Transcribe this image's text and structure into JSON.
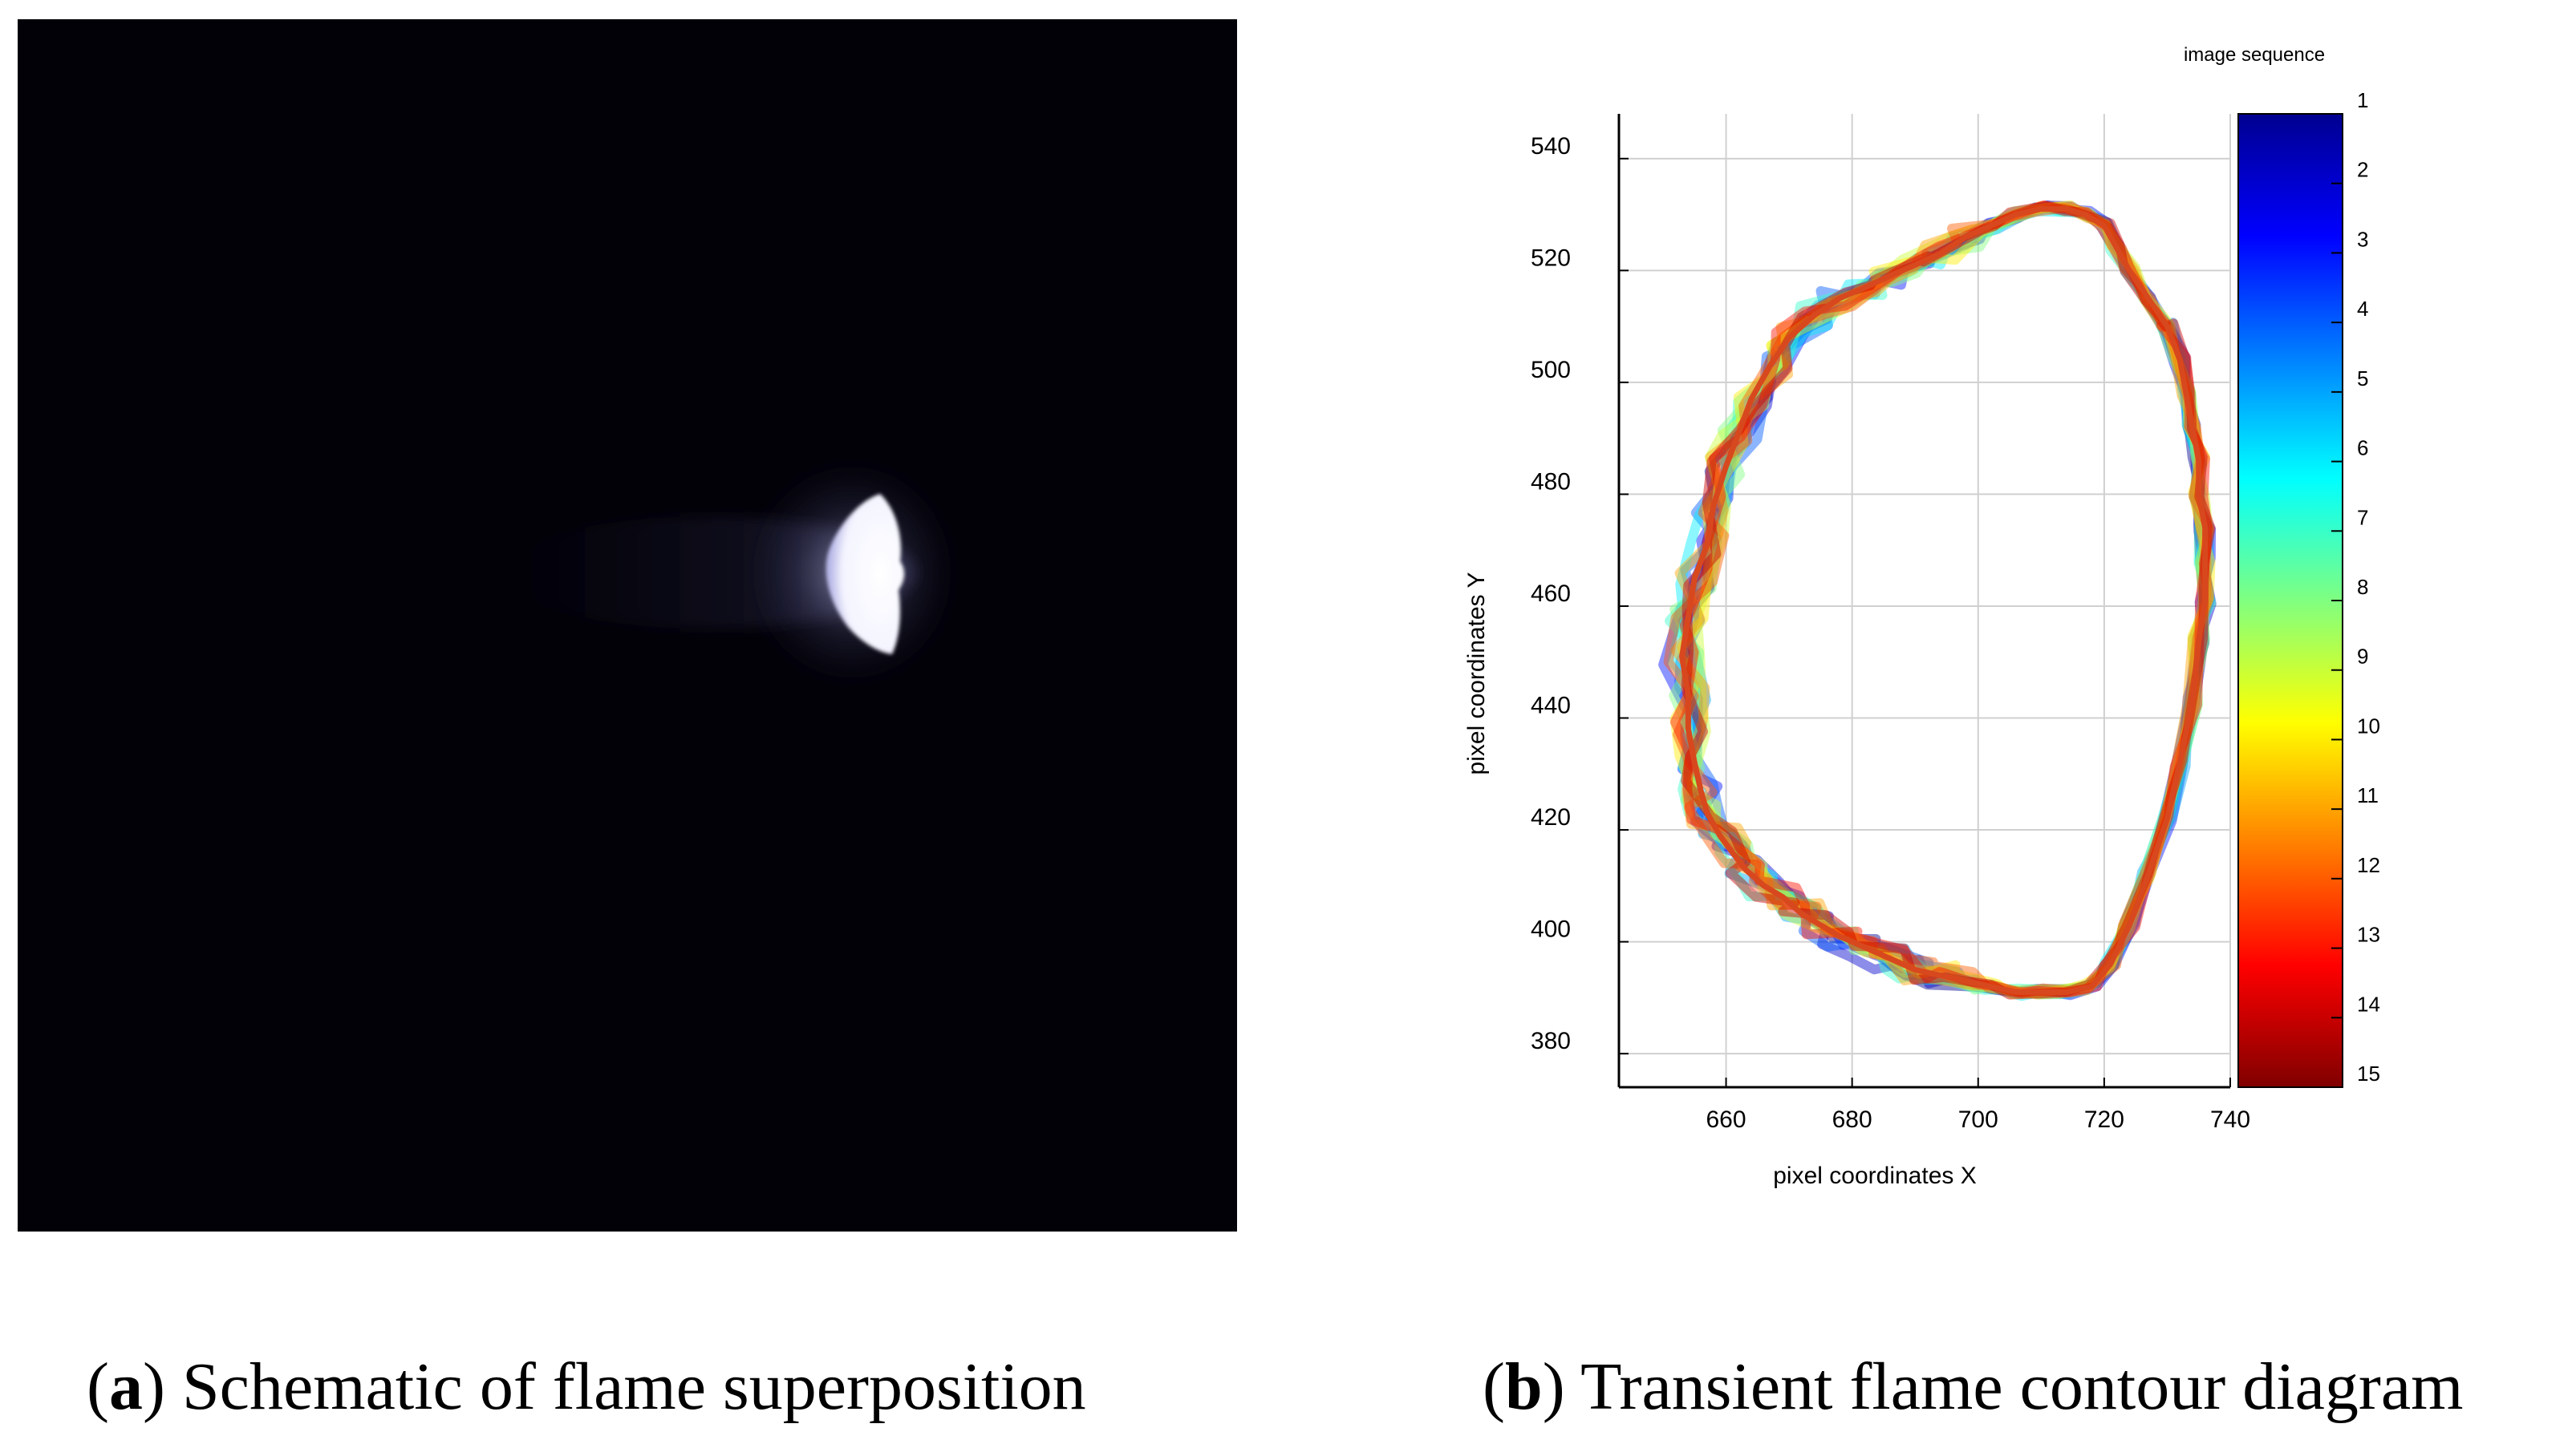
{
  "panel_a": {
    "colors": {
      "background": "#020108",
      "flame": "#f4f4ff"
    }
  },
  "captions": {
    "a_letter": "a",
    "a_text": "Schematic of flame superposition",
    "b_letter": "b",
    "b_text": "Transient flame contour diagram"
  },
  "chart_data": {
    "type": "line",
    "xlabel": "pixel coordinates X",
    "ylabel": "pixel coordinates Y",
    "xlim": [
      643,
      740
    ],
    "ylim": [
      374,
      548
    ],
    "x_ticks": [
      660,
      680,
      700,
      720,
      740
    ],
    "y_ticks": [
      380,
      400,
      420,
      440,
      460,
      480,
      500,
      520,
      540
    ],
    "grid": true,
    "colorbar": {
      "label": "image sequence",
      "ticks": [
        1,
        2,
        3,
        4,
        5,
        6,
        7,
        8,
        9,
        10,
        11,
        12,
        13,
        14,
        15
      ],
      "colors": [
        "#000090",
        "#0000ff",
        "#0080ff",
        "#00ffff",
        "#80ff80",
        "#ffff00",
        "#ff8000",
        "#ff0000",
        "#800000"
      ]
    },
    "series_count": 15,
    "contour_final_frame": {
      "x": [
        730,
        727,
        724,
        722,
        720,
        717,
        714,
        710,
        706,
        702,
        698,
        694,
        690,
        686,
        682,
        678,
        674,
        670,
        667,
        664,
        662,
        660,
        658,
        657,
        655,
        654,
        653,
        654,
        654,
        655,
        656,
        657,
        659,
        661,
        663,
        666,
        669,
        672,
        675,
        678,
        682,
        686,
        690,
        694,
        698,
        702,
        706,
        710,
        714,
        718,
        721,
        724,
        727,
        730,
        732,
        734,
        735,
        736,
        736,
        736,
        735,
        735,
        734,
        733,
        732,
        730
      ],
      "y": [
        510,
        515,
        520,
        524,
        528,
        530,
        531,
        531,
        530,
        528,
        526,
        523,
        521,
        519,
        517,
        515,
        512,
        508,
        503,
        497,
        491,
        485,
        478,
        471,
        465,
        458,
        451,
        444,
        438,
        432,
        427,
        423,
        419,
        416,
        413,
        410,
        408,
        405,
        403,
        401,
        399,
        397,
        395,
        394,
        393,
        392,
        391,
        391,
        391,
        392,
        396,
        403,
        412,
        422,
        432,
        443,
        454,
        461,
        468,
        474,
        480,
        486,
        492,
        498,
        504,
        510
      ]
    }
  }
}
